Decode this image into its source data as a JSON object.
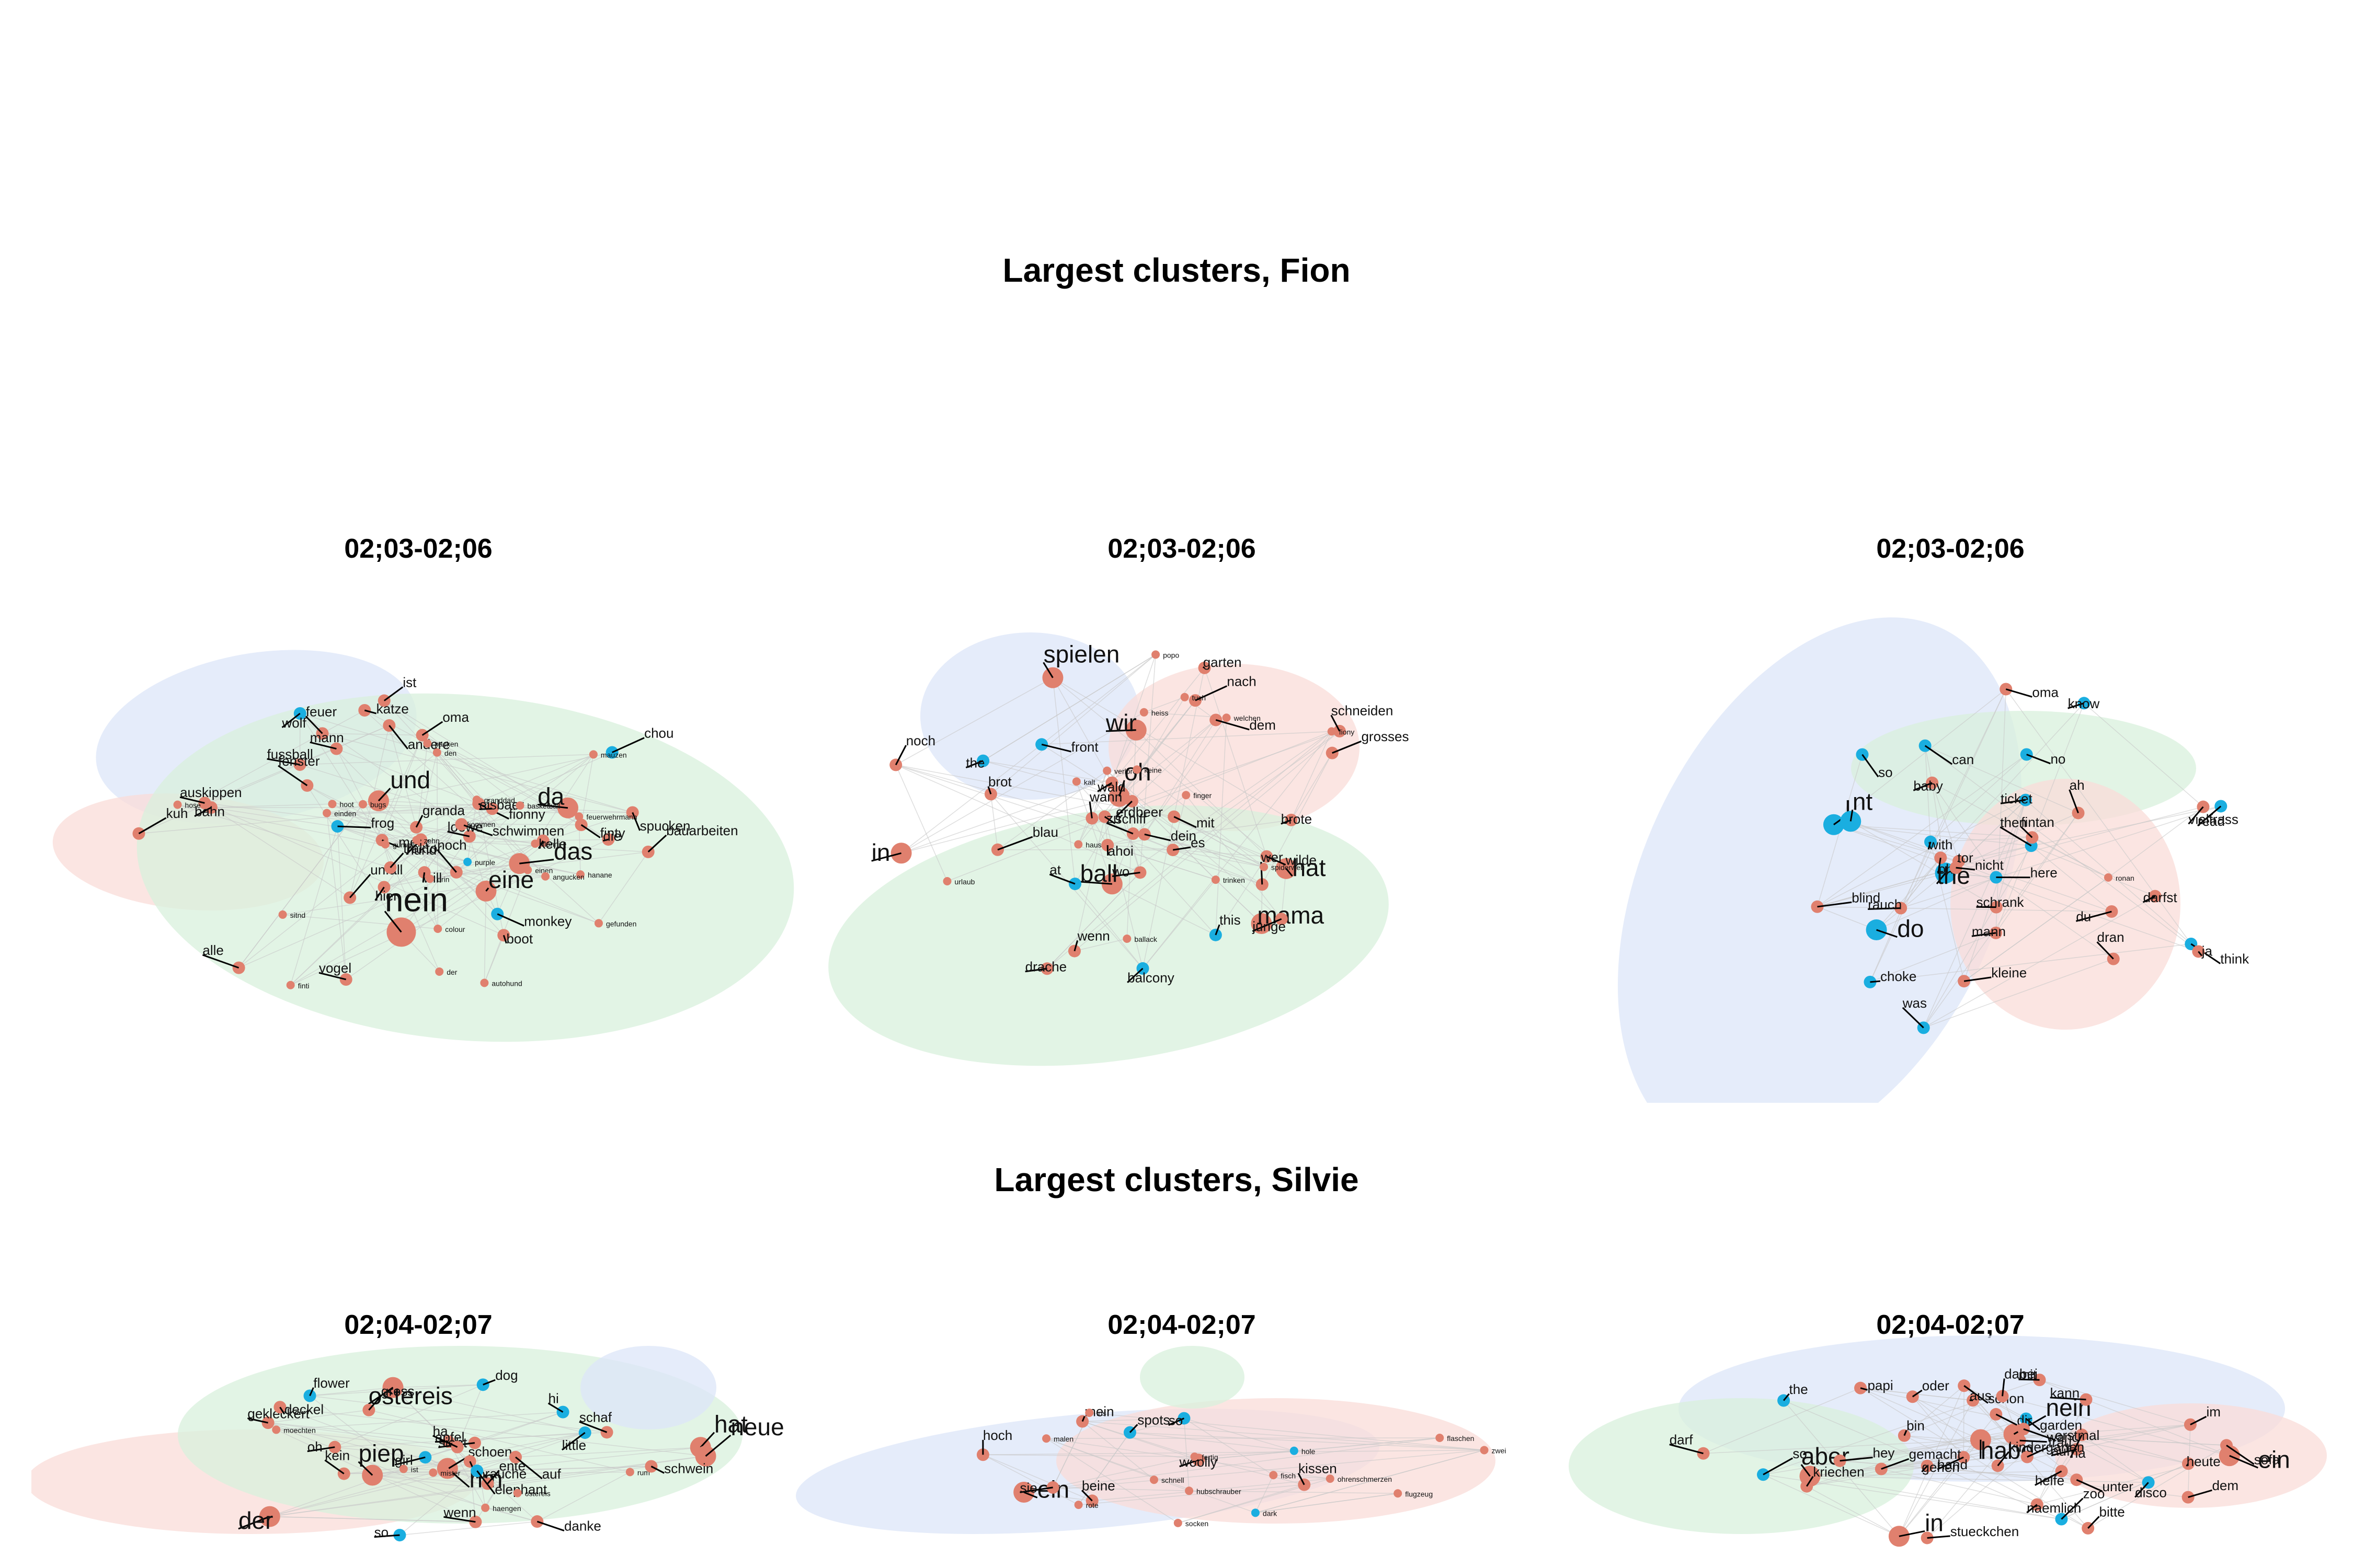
{
  "figure": {
    "fion_title": "Largest clusters, Fion",
    "silvie_title": "Largest clusters, Silvie"
  },
  "colors": {
    "german_node": "#e0806e",
    "english_node": "#1aaee0",
    "mixed_node": "#c8a48a",
    "hull_blue": "#dce6f8",
    "hull_green": "#d8f0dc",
    "hull_red": "#f9dcd8",
    "edge": "#c8c8c8",
    "leader": "#000000"
  },
  "panels": [
    {
      "id": "fion-1",
      "title": "02;03-02;06",
      "labels": [
        {
          "t": "nein",
          "s": 3
        },
        {
          "t": "und",
          "s": 2
        },
        {
          "t": "das",
          "s": 2
        },
        {
          "t": "da",
          "s": 2
        },
        {
          "t": "eine",
          "s": 2
        },
        {
          "t": "feuer",
          "s": 1
        },
        {
          "t": "unfall",
          "s": 1
        },
        {
          "t": "finty",
          "s": 1
        },
        {
          "t": "mann",
          "s": 1
        },
        {
          "t": "hier",
          "s": 1
        },
        {
          "t": "kuh",
          "s": 1
        },
        {
          "t": "noch",
          "s": 1
        },
        {
          "t": "mehr",
          "s": 1
        },
        {
          "t": "oma",
          "s": 1
        },
        {
          "t": "loewe",
          "s": 1
        },
        {
          "t": "hund",
          "s": 1
        },
        {
          "t": "fionny",
          "s": 1
        },
        {
          "t": "boot",
          "s": 1
        },
        {
          "t": "ist",
          "s": 1
        },
        {
          "t": "fussball",
          "s": 1
        },
        {
          "t": "andere",
          "s": 1
        },
        {
          "t": "granda",
          "s": 1
        },
        {
          "t": "schwimmen",
          "s": 1
        },
        {
          "t": "traktor",
          "s": 1
        },
        {
          "t": "will",
          "s": 1
        },
        {
          "t": "fenster",
          "s": 1
        },
        {
          "t": "auskippen",
          "s": 1
        },
        {
          "t": "alle",
          "s": 1
        },
        {
          "t": "spucken",
          "s": 1
        },
        {
          "t": "bauarbeiten",
          "s": 1
        },
        {
          "t": "frog",
          "s": 1
        },
        {
          "t": "monkey",
          "s": 1
        },
        {
          "t": "wolf",
          "s": 1
        },
        {
          "t": "katze",
          "s": 1
        },
        {
          "t": "vogel",
          "s": 1
        },
        {
          "t": "bahn",
          "s": 1
        },
        {
          "t": "chou",
          "s": 1
        },
        {
          "t": "eisbaer",
          "s": 1
        },
        {
          "t": "kelle",
          "s": 1
        },
        {
          "t": "die",
          "s": 1
        },
        {
          "t": "packen",
          "s": 0
        },
        {
          "t": "hanane",
          "s": 0
        },
        {
          "t": "gefunden",
          "s": 0
        },
        {
          "t": "purple",
          "s": 0
        },
        {
          "t": "einen",
          "s": 0
        },
        {
          "t": "den",
          "s": 0
        },
        {
          "t": "finti",
          "s": 0
        },
        {
          "t": "flonni",
          "s": 0
        },
        {
          "t": "der",
          "s": 0
        },
        {
          "t": "einden",
          "s": 0
        },
        {
          "t": "sitnd",
          "s": 0
        },
        {
          "t": "kommen",
          "s": 0
        },
        {
          "t": "angucken",
          "s": 0
        },
        {
          "t": "drin",
          "s": 0
        },
        {
          "t": "basketball",
          "s": 0
        },
        {
          "t": "zehn",
          "s": 0
        },
        {
          "t": "hose",
          "s": 0
        },
        {
          "t": "hoot",
          "s": 0
        },
        {
          "t": "granddad",
          "s": 0
        },
        {
          "t": "autohund",
          "s": 0
        },
        {
          "t": "feuerwehrmann",
          "s": 0
        },
        {
          "t": "bugs",
          "s": 0
        },
        {
          "t": "mauzen",
          "s": 0
        },
        {
          "t": "colour",
          "s": 0
        },
        {
          "t": "gummi",
          "s": 0
        }
      ]
    },
    {
      "id": "fion-2",
      "title": "02;03-02;06",
      "labels": [
        {
          "t": "ball",
          "s": 2
        },
        {
          "t": "mama",
          "s": 2
        },
        {
          "t": "spielen",
          "s": 2
        },
        {
          "t": "wir",
          "s": 2
        },
        {
          "t": "in",
          "s": 2
        },
        {
          "t": "oh",
          "s": 2
        },
        {
          "t": "hat",
          "s": 2
        },
        {
          "t": "junge",
          "s": 1
        },
        {
          "t": "noch",
          "s": 1
        },
        {
          "t": "wo",
          "s": 1
        },
        {
          "t": "brot",
          "s": 1
        },
        {
          "t": "es",
          "s": 1
        },
        {
          "t": "grosses",
          "s": 1
        },
        {
          "t": "schneiden",
          "s": 1
        },
        {
          "t": "schiff",
          "s": 1
        },
        {
          "t": "mit",
          "s": 1
        },
        {
          "t": "ahoi",
          "s": 1
        },
        {
          "t": "wald",
          "s": 1
        },
        {
          "t": "dem",
          "s": 1
        },
        {
          "t": "nach",
          "s": 1
        },
        {
          "t": "garten",
          "s": 1
        },
        {
          "t": "dein",
          "s": 1
        },
        {
          "t": "wann",
          "s": 1
        },
        {
          "t": "erdbeer",
          "s": 1
        },
        {
          "t": "wilde",
          "s": 1
        },
        {
          "t": "wenn",
          "s": 1
        },
        {
          "t": "blau",
          "s": 1
        },
        {
          "t": "balcony",
          "s": 1
        },
        {
          "t": "the",
          "s": 1
        },
        {
          "t": "front",
          "s": 1
        },
        {
          "t": "at",
          "s": 1
        },
        {
          "t": "wer",
          "s": 1
        },
        {
          "t": "this",
          "s": 1
        },
        {
          "t": "zu",
          "s": 1
        },
        {
          "t": "drache",
          "s": 1
        },
        {
          "t": "brote",
          "s": 1
        },
        {
          "t": "spiderweb",
          "s": 0
        },
        {
          "t": "kalt",
          "s": 0
        },
        {
          "t": "trinken",
          "s": 0
        },
        {
          "t": "popo",
          "s": 0
        },
        {
          "t": "verloren",
          "s": 0
        },
        {
          "t": "ballack",
          "s": 0
        },
        {
          "t": "finger",
          "s": 0
        },
        {
          "t": "welchen",
          "s": 0
        },
        {
          "t": "fiony",
          "s": 0
        },
        {
          "t": "urlaub",
          "s": 0
        },
        {
          "t": "haus",
          "s": 0
        },
        {
          "t": "keine",
          "s": 0
        },
        {
          "t": "tuch",
          "s": 0
        },
        {
          "t": "heiss",
          "s": 0
        }
      ]
    },
    {
      "id": "fion-3",
      "title": "02;03-02;06",
      "labels": [
        {
          "t": "the",
          "s": 2
        },
        {
          "t": "I",
          "s": 2
        },
        {
          "t": "do",
          "s": 2
        },
        {
          "t": "nt",
          "s": 2
        },
        {
          "t": "no",
          "s": 1
        },
        {
          "t": "can",
          "s": 1
        },
        {
          "t": "know",
          "s": 1
        },
        {
          "t": "was",
          "s": 1
        },
        {
          "t": "blind",
          "s": 1
        },
        {
          "t": "schrank",
          "s": 1
        },
        {
          "t": "with",
          "s": 1
        },
        {
          "t": "here",
          "s": 1
        },
        {
          "t": "choke",
          "s": 1
        },
        {
          "t": "ronan",
          "s": 0
        },
        {
          "t": "think",
          "s": 1
        },
        {
          "t": "then",
          "s": 1
        },
        {
          "t": "oma",
          "s": 1
        },
        {
          "t": "kleine",
          "s": 1
        },
        {
          "t": "ah",
          "s": 1
        },
        {
          "t": "read",
          "s": 1
        },
        {
          "t": "ticket",
          "s": 1
        },
        {
          "t": "oh",
          "s": 1
        },
        {
          "t": "ja",
          "s": 1
        },
        {
          "t": "tor",
          "s": 1
        },
        {
          "t": "vielfrass",
          "s": 1
        },
        {
          "t": "fintan",
          "s": 1
        },
        {
          "t": "rauch",
          "s": 1
        },
        {
          "t": "dran",
          "s": 1
        },
        {
          "t": "mann",
          "s": 1
        },
        {
          "t": "nicht",
          "s": 1
        },
        {
          "t": "du",
          "s": 1
        },
        {
          "t": "darfst",
          "s": 1
        },
        {
          "t": "so",
          "s": 1
        },
        {
          "t": "baby",
          "s": 1
        }
      ]
    },
    {
      "id": "silvie-1",
      "title": "02;04-02;07",
      "labels": [
        {
          "t": "der",
          "s": 2
        },
        {
          "t": "hat",
          "s": 2
        },
        {
          "t": "neue",
          "s": 2
        },
        {
          "t": "piep",
          "s": 2
        },
        {
          "t": "hm",
          "s": 2
        },
        {
          "t": "ostereis",
          "s": 2
        },
        {
          "t": "oh",
          "s": 1
        },
        {
          "t": "kein",
          "s": 1
        },
        {
          "t": "so",
          "s": 1
        },
        {
          "t": "ente",
          "s": 1
        },
        {
          "t": "gekleckert",
          "s": 1
        },
        {
          "t": "schoen",
          "s": 1
        },
        {
          "t": "gross",
          "s": 1
        },
        {
          "t": "danke",
          "s": 1
        },
        {
          "t": "deckel",
          "s": 1
        },
        {
          "t": "auf",
          "s": 1
        },
        {
          "t": "wenn",
          "s": 1
        },
        {
          "t": "apfel",
          "s": 1
        },
        {
          "t": "brauche",
          "s": 1
        },
        {
          "t": "elephant",
          "s": 1
        },
        {
          "t": "little",
          "s": 1
        },
        {
          "t": "girl",
          "s": 1
        },
        {
          "t": "flower",
          "s": 1
        },
        {
          "t": "dog",
          "s": 1
        },
        {
          "t": "sieht",
          "s": 1
        },
        {
          "t": "moechten",
          "s": 0
        },
        {
          "t": "mister",
          "s": 0
        },
        {
          "t": "rum",
          "s": 0
        },
        {
          "t": "ha",
          "s": 1
        },
        {
          "t": "schaf",
          "s": 1
        },
        {
          "t": "hi",
          "s": 1
        },
        {
          "t": "schwein",
          "s": 1
        },
        {
          "t": "ostereis",
          "s": 0
        },
        {
          "t": "haengen",
          "s": 0
        },
        {
          "t": "ist",
          "s": 0
        }
      ]
    },
    {
      "id": "silvie-2",
      "title": "02;04-02;07",
      "labels": [
        {
          "t": "ein",
          "s": 2
        },
        {
          "t": "sie",
          "s": 1
        },
        {
          "t": "mein",
          "s": 1
        },
        {
          "t": "woolly",
          "s": 1
        },
        {
          "t": "hoch",
          "s": 1
        },
        {
          "t": "so",
          "s": 1
        },
        {
          "t": "beine",
          "s": 1
        },
        {
          "t": "malen",
          "s": 0
        },
        {
          "t": "kissen",
          "s": 1
        },
        {
          "t": "fisch",
          "s": 0
        },
        {
          "t": "spots",
          "s": 1
        },
        {
          "t": "fertig",
          "s": 0
        },
        {
          "t": "ohrenschmerzen",
          "s": 0
        },
        {
          "t": "schnell",
          "s": 0
        },
        {
          "t": "dark",
          "s": 0
        },
        {
          "t": "hole",
          "s": 0
        },
        {
          "t": "los",
          "s": 0
        },
        {
          "t": "rote",
          "s": 0
        },
        {
          "t": "flugzeug",
          "s": 0
        },
        {
          "t": "hubschrauber",
          "s": 0
        },
        {
          "t": "flaschen",
          "s": 0
        },
        {
          "t": "zwei",
          "s": 0
        },
        {
          "t": "socken",
          "s": 0
        }
      ]
    },
    {
      "id": "silvie-3",
      "title": "02;04-02;07",
      "labels": [
        {
          "t": "aber",
          "s": 2
        },
        {
          "t": "habe",
          "s": 2
        },
        {
          "t": "in",
          "s": 2
        },
        {
          "t": "ein",
          "s": 2
        },
        {
          "t": "nein",
          "s": 2
        },
        {
          "t": "schon",
          "s": 1
        },
        {
          "t": "dem",
          "s": 1
        },
        {
          "t": "oder",
          "s": 1
        },
        {
          "t": "sofa",
          "s": 1
        },
        {
          "t": "helfe",
          "s": 1
        },
        {
          "t": "papi",
          "s": 1
        },
        {
          "t": "bitte",
          "s": 1
        },
        {
          "t": "hey",
          "s": 1
        },
        {
          "t": "so",
          "s": 1
        },
        {
          "t": "aus",
          "s": 1
        },
        {
          "t": "auf",
          "s": 1
        },
        {
          "t": "unter",
          "s": 1
        },
        {
          "t": "wand",
          "s": 1
        },
        {
          "t": "naemlich",
          "s": 1
        },
        {
          "t": "kriechen",
          "s": 1
        },
        {
          "t": "frau",
          "s": 1
        },
        {
          "t": "stueckchen",
          "s": 1
        },
        {
          "t": "kann",
          "s": 1
        },
        {
          "t": "mit",
          "s": 1
        },
        {
          "t": "the",
          "s": 1
        },
        {
          "t": "na",
          "s": 1
        },
        {
          "t": "heute",
          "s": 1
        },
        {
          "t": "garden",
          "s": 1
        },
        {
          "t": "disco",
          "s": 1
        },
        {
          "t": "zoo",
          "s": 1
        },
        {
          "t": "gehen",
          "s": 1
        },
        {
          "t": "im",
          "s": 1
        },
        {
          "t": "kindergarten",
          "s": 1
        },
        {
          "t": "hand",
          "s": 1
        },
        {
          "t": "gemacht",
          "s": 1
        },
        {
          "t": "dir",
          "s": 1
        },
        {
          "t": "dabei",
          "s": 1
        },
        {
          "t": "darf",
          "s": 1
        },
        {
          "t": "bin",
          "s": 1
        },
        {
          "t": "erstmal",
          "s": 1
        }
      ]
    }
  ]
}
